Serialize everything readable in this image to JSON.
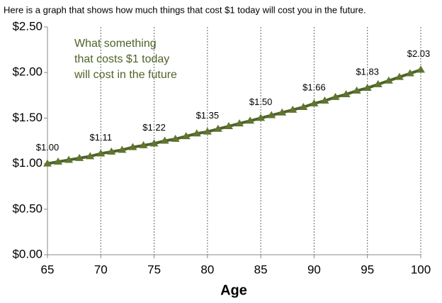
{
  "chart_data": {
    "type": "line",
    "title": "Here is a graph that shows how much things that cost $1 today will cost you in the future.",
    "x_label": "Age",
    "annotation": [
      "What something",
      "that costs $1 today",
      "will cost in the future"
    ],
    "x": [
      65,
      66,
      67,
      68,
      69,
      70,
      71,
      72,
      73,
      74,
      75,
      76,
      77,
      78,
      79,
      80,
      81,
      82,
      83,
      84,
      85,
      86,
      87,
      88,
      89,
      90,
      91,
      92,
      93,
      94,
      95,
      96,
      97,
      98,
      99,
      100
    ],
    "values": [
      1.0,
      1.02,
      1.04,
      1.06,
      1.08,
      1.11,
      1.13,
      1.15,
      1.18,
      1.2,
      1.22,
      1.25,
      1.27,
      1.3,
      1.33,
      1.35,
      1.38,
      1.41,
      1.44,
      1.47,
      1.5,
      1.53,
      1.56,
      1.59,
      1.62,
      1.66,
      1.69,
      1.73,
      1.76,
      1.8,
      1.83,
      1.87,
      1.91,
      1.95,
      1.99,
      2.03
    ],
    "value_labels": [
      "$1.00",
      null,
      null,
      null,
      null,
      "$1.11",
      null,
      null,
      null,
      null,
      "$1.22",
      null,
      null,
      null,
      null,
      "$1.35",
      null,
      null,
      null,
      null,
      "$1.50",
      null,
      null,
      null,
      null,
      "$1.66",
      null,
      null,
      null,
      null,
      "$1.83",
      null,
      null,
      null,
      null,
      "$2.03"
    ],
    "color": "#4f6228",
    "marker_color": "#5f7530",
    "xlim": [
      65,
      100
    ],
    "xticks": [
      65,
      70,
      75,
      80,
      85,
      90,
      95,
      100
    ],
    "ylim": [
      0,
      2.5
    ],
    "yticks": [
      {
        "value": 0,
        "label": "$0.00"
      },
      {
        "value": 0.5,
        "label": "$0.50"
      },
      {
        "value": 1,
        "label": "$1.00"
      },
      {
        "value": 1.5,
        "label": "$1.50"
      },
      {
        "value": 2,
        "label": "$2.00"
      },
      {
        "value": 2.5,
        "label": "$2.50"
      }
    ],
    "grid": "x"
  }
}
